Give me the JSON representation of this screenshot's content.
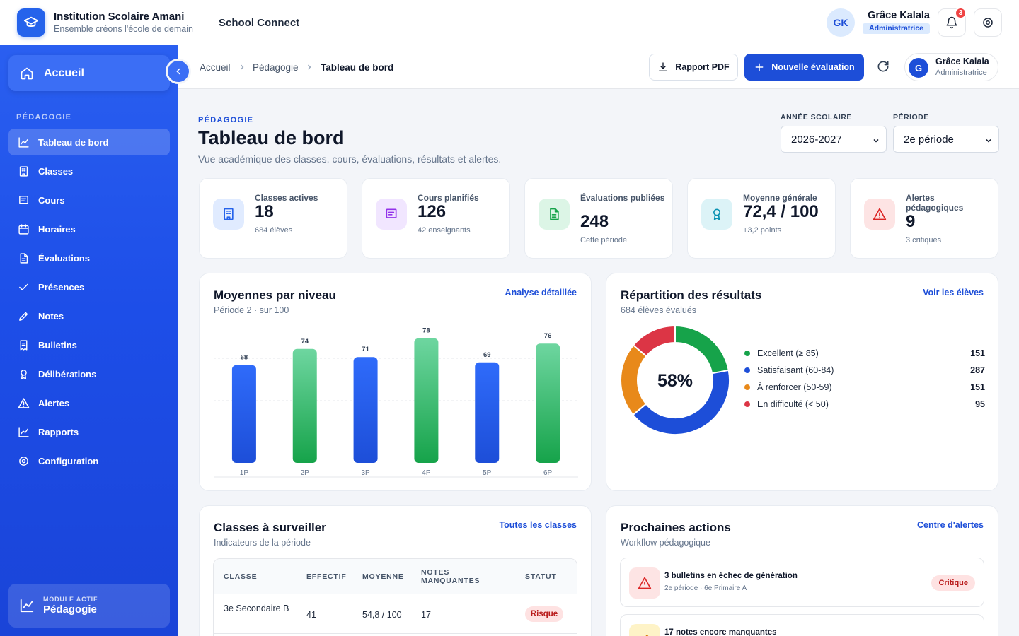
{
  "header": {
    "institution_name": "Institution Scolaire Amani",
    "institution_tagline": "Ensemble créons l'école de demain",
    "app_name": "School Connect",
    "user_initials": "GK",
    "user_name": "Grâce Kalala",
    "user_role": "Administratrice",
    "notification_count": "3"
  },
  "sidebar": {
    "home_label": "Accueil",
    "section_label": "PÉDAGOGIE",
    "items": [
      {
        "label": "Tableau de bord",
        "icon": "chart-line-icon",
        "active": true
      },
      {
        "label": "Classes",
        "icon": "building-icon"
      },
      {
        "label": "Cours",
        "icon": "message-square-icon"
      },
      {
        "label": "Horaires",
        "icon": "calendar-icon"
      },
      {
        "label": "Évaluations",
        "icon": "file-text-icon"
      },
      {
        "label": "Présences",
        "icon": "check-icon"
      },
      {
        "label": "Notes",
        "icon": "pencil-icon"
      },
      {
        "label": "Bulletins",
        "icon": "receipt-icon"
      },
      {
        "label": "Délibérations",
        "icon": "award-icon"
      },
      {
        "label": "Alertes",
        "icon": "alert-triangle-icon"
      },
      {
        "label": "Rapports",
        "icon": "chart-line-icon"
      },
      {
        "label": "Configuration",
        "icon": "gear-icon"
      }
    ],
    "module_caption": "MODULE ACTIF",
    "module_name": "Pédagogie"
  },
  "breadcrumb": [
    "Accueil",
    "Pédagogie",
    "Tableau de bord"
  ],
  "toolbar": {
    "pdf_label": "Rapport PDF",
    "new_eval_label": "Nouvelle évaluation",
    "user_initial": "G",
    "user_name": "Grâce Kalala",
    "user_role": "Administratrice"
  },
  "page": {
    "kicker": "PÉDAGOGIE",
    "title": "Tableau de bord",
    "subtitle": "Vue académique des classes, cours, évaluations, résultats et alertes."
  },
  "filters": {
    "year_label": "ANNÉE SCOLAIRE",
    "year_value": "2026-2027",
    "period_label": "PÉRIODE",
    "period_value": "2e période"
  },
  "kpis": [
    {
      "label": "Classes actives",
      "value": "18",
      "sub": "684 élèves",
      "icon": "building-icon",
      "bg": "#e0ebff",
      "fg": "#2563eb"
    },
    {
      "label": "Cours planifiés",
      "value": "126",
      "sub": "42 enseignants",
      "icon": "message-square-icon",
      "bg": "#f1e6ff",
      "fg": "#9333ea"
    },
    {
      "label": "Évaluations publiées",
      "value": "248",
      "sub": "Cette période",
      "icon": "file-text-icon",
      "bg": "#dcf5e6",
      "fg": "#16a34a"
    },
    {
      "label": "Moyenne générale",
      "value": "72,4 / 100",
      "sub": "+3,2 points",
      "icon": "award-icon",
      "bg": "#dcf3f7",
      "fg": "#0891b2"
    },
    {
      "label": "Alertes pédagogiques",
      "value": "9",
      "sub": "3 critiques",
      "icon": "alert-triangle-icon",
      "bg": "#fde4e4",
      "fg": "#dc2626"
    }
  ],
  "bar_card": {
    "title": "Moyennes par niveau",
    "subtitle": "Période 2 · sur 100",
    "link": "Analyse détaillée"
  },
  "donut_card": {
    "title": "Répartition des résultats",
    "subtitle": "684 élèves évalués",
    "link": "Voir les élèves",
    "center_label": "58%",
    "legend": [
      {
        "label": "Excellent (≥ 85)",
        "count": "151",
        "color": "#16a34a"
      },
      {
        "label": "Satisfaisant (60-84)",
        "count": "287",
        "color": "#1d4ed8"
      },
      {
        "label": "À renforcer (50-59)",
        "count": "151",
        "color": "#e8891a"
      },
      {
        "label": "En difficulté (< 50)",
        "count": "95",
        "color": "#dc3545"
      }
    ]
  },
  "chart_data": [
    {
      "type": "bar",
      "title": "Moyennes par niveau",
      "subtitle": "Période 2 · sur 100",
      "categories": [
        "1P",
        "2P",
        "3P",
        "4P",
        "5P",
        "6P"
      ],
      "values": [
        68,
        74,
        71,
        78,
        69,
        76
      ],
      "ylim": [
        0,
        100
      ],
      "grid": true,
      "colors": [
        "#2563eb",
        "#22b36b",
        "#2563eb",
        "#22b36b",
        "#2563eb",
        "#22b36b"
      ]
    },
    {
      "type": "pie",
      "title": "Répartition des résultats",
      "categories": [
        "Excellent (≥ 85)",
        "Satisfaisant (60-84)",
        "À renforcer (50-59)",
        "En difficulté (< 50)"
      ],
      "values": [
        151,
        287,
        151,
        95
      ],
      "colors": [
        "#16a34a",
        "#1d4ed8",
        "#e8891a",
        "#dc3545"
      ],
      "center_label": "58%"
    }
  ],
  "classes_card": {
    "title": "Classes à surveiller",
    "subtitle": "Indicateurs de la période",
    "link": "Toutes les classes",
    "columns": [
      "CLASSE",
      "EFFECTIF",
      "MOYENNE",
      "NOTES MANQUANTES",
      "STATUT"
    ],
    "rows": [
      {
        "classe": "3e Secondaire B",
        "effectif": "41",
        "moyenne": "54,8 / 100",
        "manquantes": "17",
        "statut": "Risque"
      }
    ]
  },
  "actions_card": {
    "title": "Prochaines actions",
    "subtitle": "Workflow pédagogique",
    "link": "Centre d'alertes",
    "items": [
      {
        "title": "3 bulletins en échec de génération",
        "sub": "2e période · 6e Primaire A",
        "badge": "Critique"
      },
      {
        "title": "17 notes encore manquantes",
        "sub": "",
        "badge": ""
      }
    ]
  }
}
